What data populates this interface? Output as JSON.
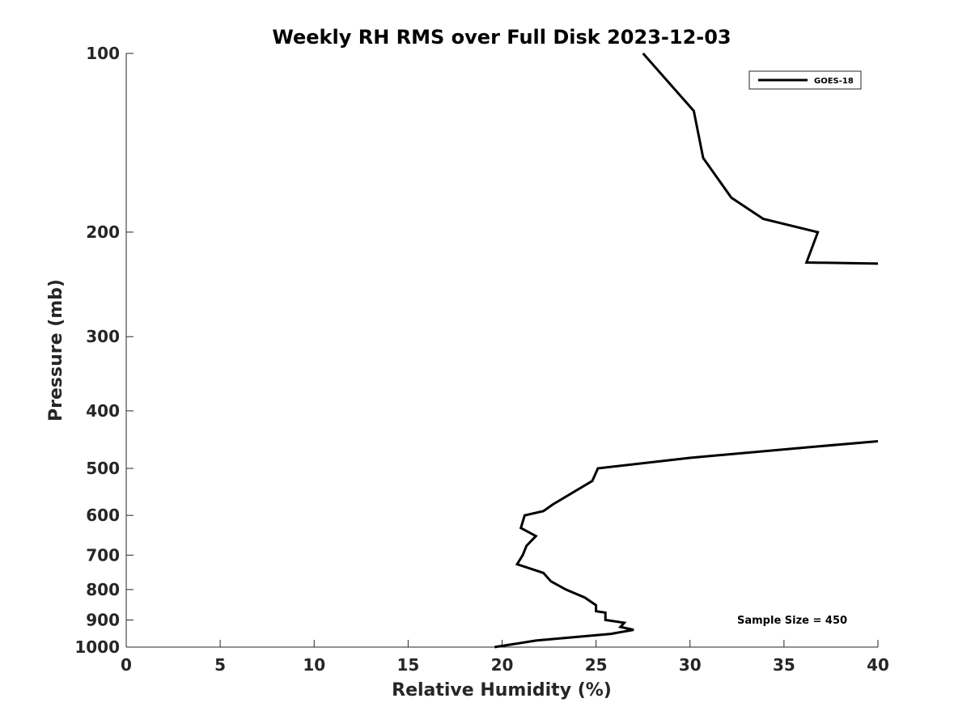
{
  "chart_data": {
    "type": "line",
    "title": "Weekly RH RMS over Full Disk 2023-12-03",
    "xlabel": "Relative Humidity (%)",
    "ylabel": "Pressure (mb)",
    "xlim": [
      0,
      40
    ],
    "ylim": [
      100,
      1000
    ],
    "yscale": "log",
    "y_reversed": true,
    "grid": false,
    "legend_position": "top-right",
    "xticks": [
      0,
      5,
      10,
      15,
      20,
      25,
      30,
      35,
      40
    ],
    "yticks": [
      100,
      200,
      300,
      400,
      500,
      600,
      700,
      800,
      900,
      1000
    ],
    "series": [
      {
        "name": "GOES-18",
        "color": "#000000",
        "segments": [
          [
            {
              "x": 27.5,
              "y": 100
            },
            {
              "x": 30.2,
              "y": 125
            },
            {
              "x": 30.7,
              "y": 150
            },
            {
              "x": 32.2,
              "y": 175
            },
            {
              "x": 33.9,
              "y": 190
            },
            {
              "x": 36.8,
              "y": 200
            },
            {
              "x": 36.2,
              "y": 225
            },
            {
              "x": 40.0,
              "y": 226
            }
          ],
          [
            {
              "x": 40.0,
              "y": 450
            },
            {
              "x": 36.5,
              "y": 460
            },
            {
              "x": 30.0,
              "y": 480
            },
            {
              "x": 25.1,
              "y": 500
            },
            {
              "x": 24.8,
              "y": 525
            },
            {
              "x": 22.7,
              "y": 575
            },
            {
              "x": 22.2,
              "y": 590
            },
            {
              "x": 21.2,
              "y": 600
            },
            {
              "x": 21.0,
              "y": 630
            },
            {
              "x": 21.8,
              "y": 650
            },
            {
              "x": 21.3,
              "y": 675
            },
            {
              "x": 21.1,
              "y": 700
            },
            {
              "x": 20.8,
              "y": 725
            },
            {
              "x": 22.2,
              "y": 750
            },
            {
              "x": 22.6,
              "y": 775
            },
            {
              "x": 23.4,
              "y": 800
            },
            {
              "x": 24.4,
              "y": 825
            },
            {
              "x": 25.0,
              "y": 850
            },
            {
              "x": 25.0,
              "y": 870
            },
            {
              "x": 25.5,
              "y": 875
            },
            {
              "x": 25.5,
              "y": 900
            },
            {
              "x": 26.5,
              "y": 910
            },
            {
              "x": 26.3,
              "y": 925
            },
            {
              "x": 27.0,
              "y": 935
            },
            {
              "x": 25.8,
              "y": 950
            },
            {
              "x": 21.8,
              "y": 975
            },
            {
              "x": 19.6,
              "y": 1000
            }
          ]
        ]
      }
    ],
    "annotations": [
      "Sample Size = 450"
    ]
  }
}
